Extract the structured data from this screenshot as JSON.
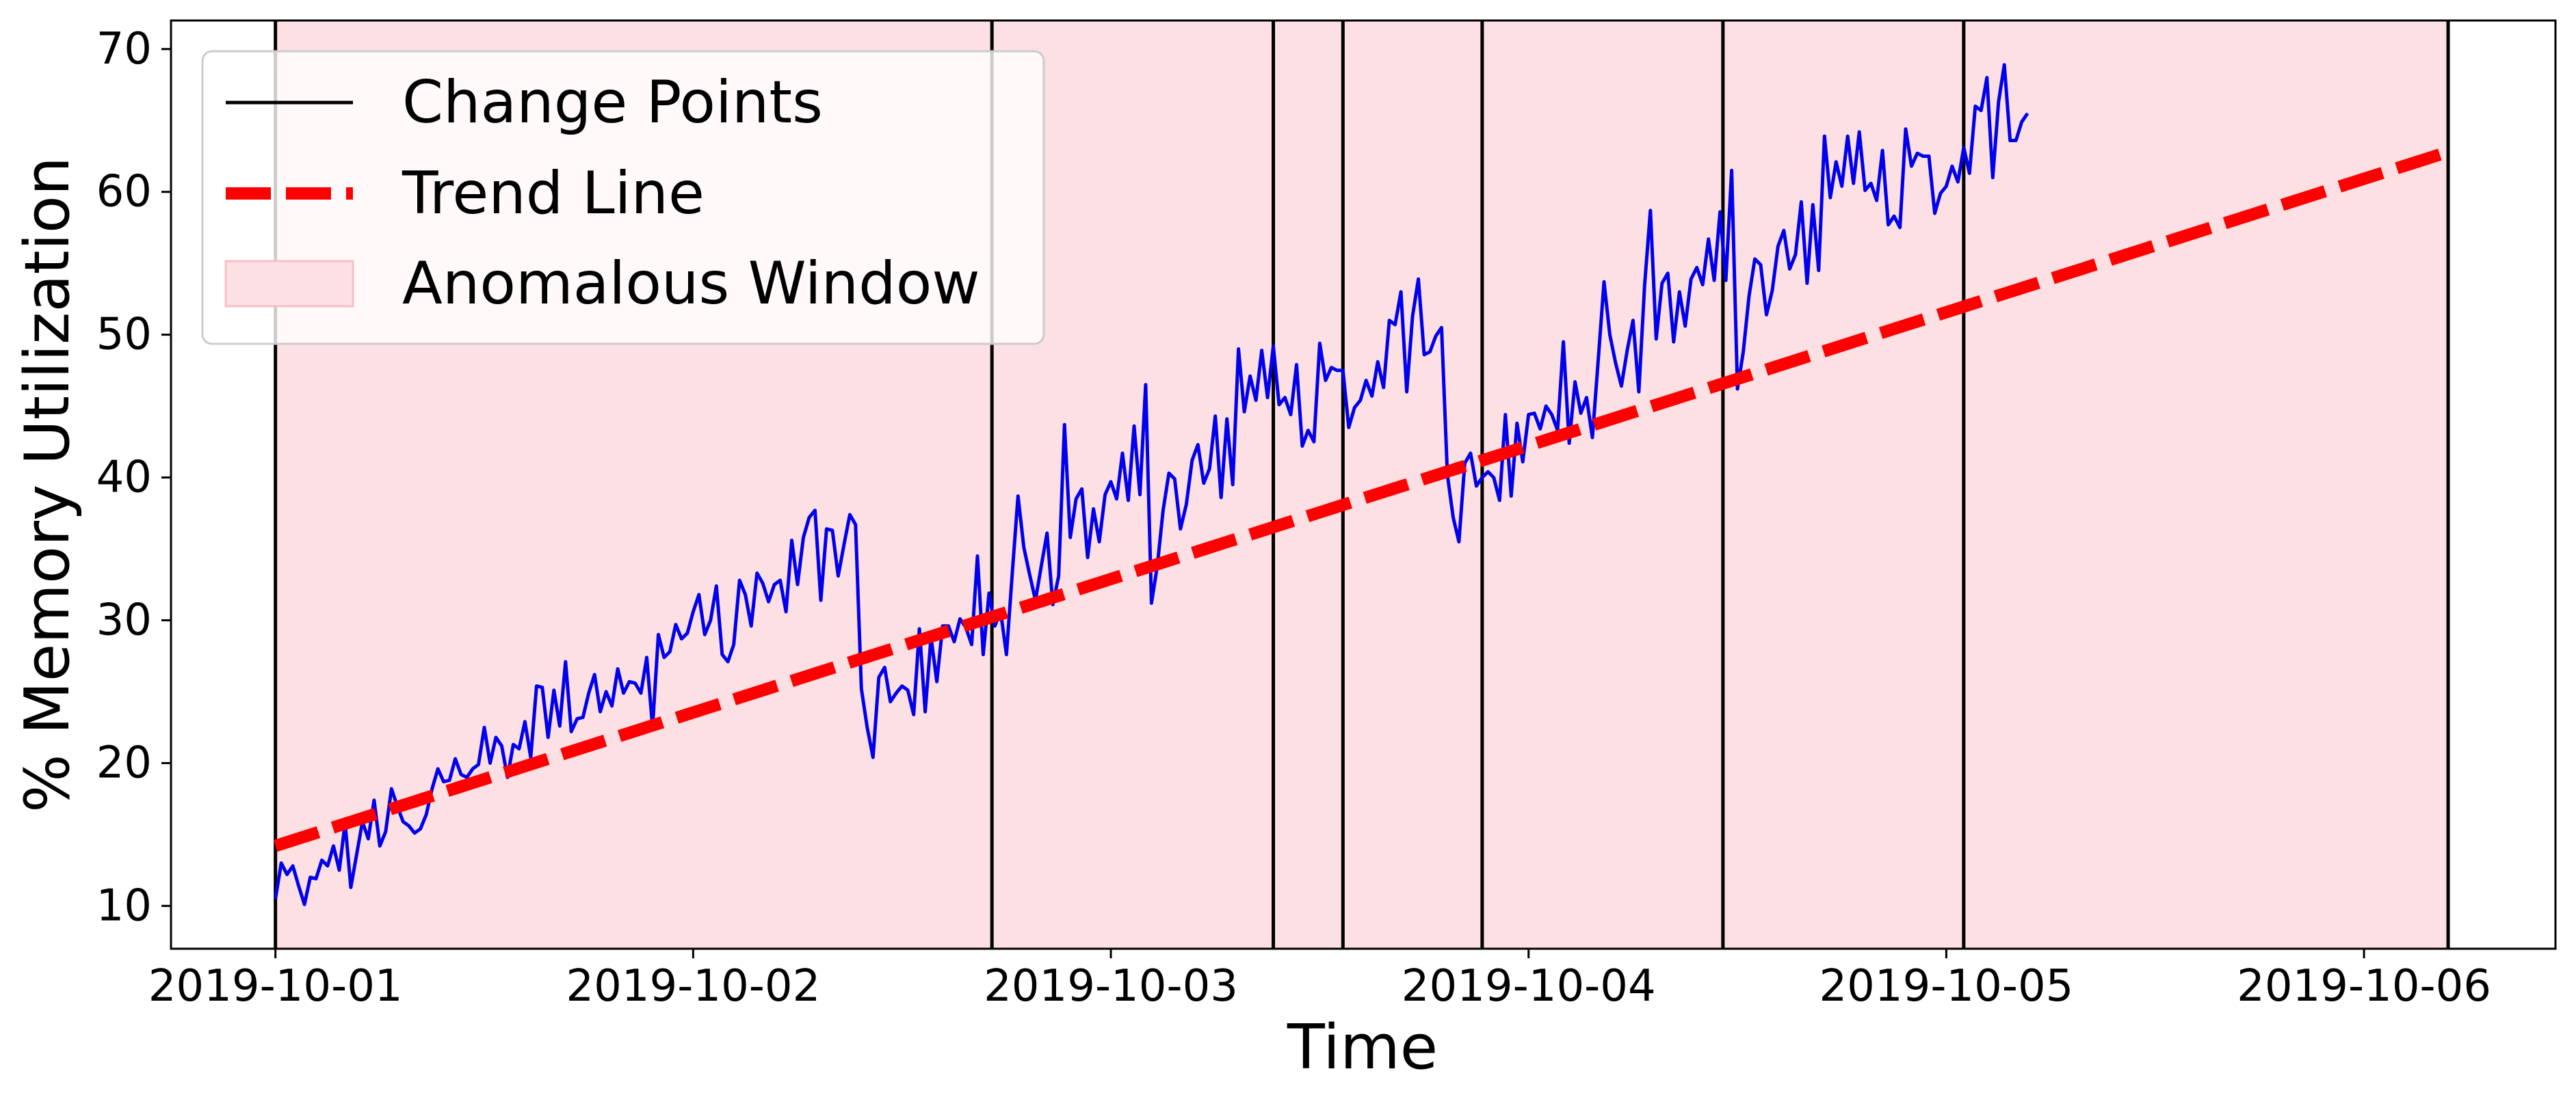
{
  "chart_data": {
    "type": "line",
    "title": "",
    "xlabel": "Time",
    "ylabel": "% Memory Utilization",
    "grid": false,
    "legend_position": "top-left",
    "x_ticks": [
      "2019-10-01",
      "2019-10-02",
      "2019-10-03",
      "2019-10-04",
      "2019-10-05",
      "2019-10-06"
    ],
    "y_ticks": [
      10,
      20,
      30,
      40,
      50,
      60,
      70
    ],
    "xlim": [
      "2019-09-30T18:00",
      "2019-10-06T11:00"
    ],
    "ylim": [
      7,
      72
    ],
    "legend": [
      {
        "label": "Change Points",
        "style": "line",
        "color": "#000000"
      },
      {
        "label": "Trend Line",
        "style": "dashed",
        "color": "#ff0000"
      },
      {
        "label": "Anomalous Window",
        "style": "patch",
        "color": "#fde0e3"
      }
    ],
    "series": {
      "name": "% Memory Utilization",
      "color": "#0000ee",
      "start": "2019-10-01T00:00",
      "interval_minutes": 20,
      "values": [
        10.5,
        13.0,
        12.2,
        12.8,
        11.4,
        10.1,
        12.0,
        11.9,
        13.2,
        12.8,
        14.2,
        12.5,
        15.8,
        11.3,
        13.6,
        15.9,
        14.7,
        17.4,
        14.2,
        15.2,
        18.2,
        17.0,
        15.9,
        15.6,
        15.1,
        15.4,
        16.4,
        18.2,
        19.6,
        18.7,
        18.8,
        20.3,
        19.2,
        19.0,
        19.6,
        19.9,
        22.5,
        20.0,
        21.8,
        21.2,
        19.0,
        21.3,
        21.0,
        22.9,
        20.4,
        25.4,
        25.3,
        21.8,
        25.1,
        22.6,
        27.1,
        22.2,
        23.1,
        23.2,
        24.9,
        26.2,
        23.6,
        25.0,
        24.0,
        26.6,
        24.9,
        25.7,
        25.6,
        24.9,
        27.4,
        22.5,
        29.0,
        27.4,
        27.8,
        29.7,
        28.7,
        29.1,
        30.6,
        31.8,
        29.0,
        30.0,
        32.4,
        27.6,
        27.1,
        28.3,
        32.8,
        31.8,
        29.6,
        33.3,
        32.6,
        31.3,
        32.5,
        32.8,
        30.6,
        35.6,
        32.5,
        35.8,
        37.2,
        37.7,
        31.4,
        36.4,
        36.3,
        33.1,
        35.3,
        37.4,
        36.7,
        25.2,
        22.5,
        20.4,
        26.0,
        26.7,
        24.3,
        24.9,
        25.4,
        25.1,
        23.4,
        29.4,
        23.6,
        28.8,
        25.7,
        29.6,
        29.6,
        28.5,
        30.1,
        29.5,
        28.3,
        34.5,
        27.6,
        31.9,
        29.6,
        30.6,
        27.6,
        33.3,
        38.7,
        35.1,
        33.2,
        31.4,
        33.8,
        36.1,
        31.1,
        33.1,
        43.7,
        35.8,
        38.5,
        39.2,
        34.4,
        37.8,
        35.5,
        38.8,
        39.7,
        38.5,
        41.7,
        38.4,
        43.6,
        38.8,
        46.5,
        31.2,
        33.8,
        37.7,
        40.3,
        39.9,
        36.4,
        38.1,
        41.2,
        42.3,
        39.6,
        40.6,
        44.3,
        38.6,
        44.1,
        39.5,
        49.0,
        44.6,
        47.1,
        45.4,
        48.9,
        45.6,
        49.2,
        45.1,
        45.6,
        44.4,
        47.9,
        42.2,
        43.3,
        42.5,
        49.4,
        46.8,
        47.7,
        47.5,
        47.5,
        43.5,
        44.9,
        45.4,
        46.8,
        45.7,
        48.1,
        46.3,
        51.0,
        50.7,
        53.0,
        46.0,
        51.3,
        53.9,
        48.6,
        48.8,
        49.9,
        50.5,
        40.2,
        37.2,
        35.5,
        41.0,
        41.7,
        39.4,
        40.0,
        40.4,
        40.0,
        38.4,
        44.4,
        38.7,
        43.8,
        41.1,
        44.4,
        44.5,
        43.4,
        45.0,
        44.4,
        43.3,
        49.5,
        42.4,
        46.7,
        44.5,
        45.6,
        42.8,
        48.2,
        53.7,
        50.0,
        48.0,
        46.4,
        48.9,
        51.0,
        46.0,
        53.5,
        58.7,
        49.7,
        53.6,
        54.3,
        49.5,
        53.0,
        50.6,
        53.9,
        54.7,
        53.5,
        56.7,
        53.8,
        58.6,
        53.8,
        61.5,
        46.2,
        48.8,
        52.7,
        55.3,
        54.9,
        51.4,
        53.1,
        56.2,
        57.3,
        54.6,
        55.6,
        59.3,
        53.6,
        59.1,
        54.5,
        63.9,
        59.6,
        62.1,
        60.4,
        63.9,
        60.6,
        64.2,
        60.1,
        60.6,
        59.4,
        62.9,
        57.7,
        58.3,
        57.5,
        64.4,
        61.8,
        62.7,
        62.5,
        62.5,
        58.5,
        59.9,
        60.4,
        61.8,
        60.7,
        63.1,
        61.3,
        66.0,
        65.7,
        68.0,
        61.0,
        66.3,
        68.9,
        63.6,
        63.6,
        64.9,
        65.5
      ]
    },
    "trend_line": {
      "label": "Trend Line",
      "color": "#ff0000",
      "start": [
        "2019-10-01T00:00",
        14.2
      ],
      "end": [
        "2019-10-06T04:50",
        62.8
      ]
    },
    "change_points": [
      "2019-10-01T00:00",
      "2019-10-02T17:10",
      "2019-10-03T09:20",
      "2019-10-03T13:20",
      "2019-10-03T21:20",
      "2019-10-04T11:10",
      "2019-10-05T01:00",
      "2019-10-06T04:50"
    ],
    "anomalous_windows": [
      [
        "2019-10-01T00:00",
        "2019-10-06T04:50"
      ]
    ]
  }
}
